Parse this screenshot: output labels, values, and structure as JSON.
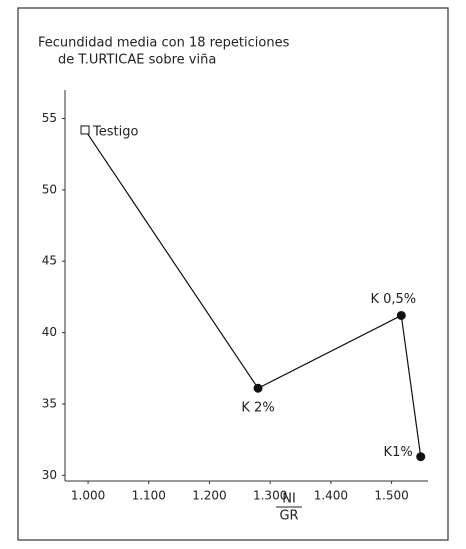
{
  "chart_data": {
    "type": "line",
    "title": [
      "Fecundidad media con 18 repeticiones",
      "de T.URTICAE sobre viña"
    ],
    "xlabel": {
      "numerator": "NI",
      "denominator": "GR"
    },
    "x": [
      0.995,
      1.28,
      1.516,
      1.548
    ],
    "series": [
      {
        "color": "#111111",
        "values": [
          54.2,
          36.1,
          41.2,
          31.3
        ],
        "markers": [
          "square",
          "circle",
          "circle",
          "circle"
        ]
      }
    ],
    "point_labels": [
      "Testigo",
      "K 2%",
      "K 0,5%",
      "K1%"
    ],
    "xlim": [
      0.962,
      1.56
    ],
    "ylim": [
      29.6,
      57
    ],
    "xticks": [
      {
        "value": 1.0,
        "label": "1.000"
      },
      {
        "value": 1.1,
        "label": "1.100"
      },
      {
        "value": 1.2,
        "label": "1.200"
      },
      {
        "value": 1.3,
        "label": "1.300"
      },
      {
        "value": 1.4,
        "label": "1.400"
      },
      {
        "value": 1.5,
        "label": "1.500"
      }
    ],
    "yticks": [
      30,
      35,
      40,
      45,
      50,
      55
    ]
  }
}
